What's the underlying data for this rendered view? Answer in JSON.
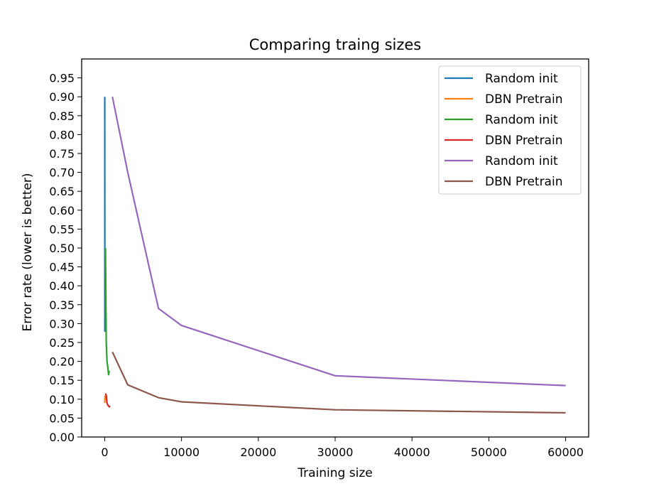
{
  "chart_data": {
    "type": "line",
    "title": "Comparing traing sizes",
    "xlabel": "Training size",
    "ylabel": "Error rate (lower is better)",
    "xlim": [
      -3000,
      63000
    ],
    "ylim": [
      0,
      1.0
    ],
    "xticks": [
      0,
      10000,
      20000,
      30000,
      40000,
      50000,
      60000
    ],
    "xtick_labels": [
      "0",
      "10000",
      "20000",
      "30000",
      "40000",
      "50000",
      "60000"
    ],
    "yticks": [
      0,
      0.05,
      0.1,
      0.15,
      0.2,
      0.25,
      0.3,
      0.35,
      0.4,
      0.45,
      0.5,
      0.55,
      0.6,
      0.65,
      0.7,
      0.75,
      0.8,
      0.85,
      0.9,
      0.95
    ],
    "ytick_labels": [
      "0.00",
      "0.05",
      "0.10",
      "0.15",
      "0.20",
      "0.25",
      "0.30",
      "0.35",
      "0.40",
      "0.45",
      "0.50",
      "0.55",
      "0.60",
      "0.65",
      "0.70",
      "0.75",
      "0.80",
      "0.85",
      "0.90",
      "0.95"
    ],
    "grid": false,
    "legend_position": "top-right",
    "series": [
      {
        "name": "Random init",
        "color": "#1f77b4",
        "x": [
          10,
          20,
          30,
          40,
          50
        ],
        "y": [
          0.9,
          0.28,
          0.285,
          0.29,
          0.295
        ]
      },
      {
        "name": "DBN Pretrain",
        "color": "#ff7f0e",
        "x": [
          10,
          20,
          30,
          40,
          50
        ],
        "y": [
          0.09,
          0.095,
          0.1,
          0.105,
          0.11
        ]
      },
      {
        "name": "Random init",
        "color": "#2ca02c",
        "x": [
          100,
          200,
          300,
          400,
          500,
          600
        ],
        "y": [
          0.5,
          0.25,
          0.2,
          0.185,
          0.165,
          0.175
        ]
      },
      {
        "name": "DBN Pretrain",
        "color": "#d62728",
        "x": [
          100,
          200,
          300,
          400,
          500,
          600,
          700
        ],
        "y": [
          0.115,
          0.11,
          0.09,
          0.085,
          0.082,
          0.08,
          0.082
        ]
      },
      {
        "name": "Random init",
        "color": "#9467bd",
        "x": [
          1000,
          3000,
          7000,
          10000,
          30000,
          60000
        ],
        "y": [
          0.9,
          0.7,
          0.34,
          0.295,
          0.162,
          0.136
        ]
      },
      {
        "name": "DBN Pretrain",
        "color": "#8c564b",
        "x": [
          1000,
          3000,
          7000,
          10000,
          30000,
          60000
        ],
        "y": [
          0.225,
          0.138,
          0.104,
          0.093,
          0.072,
          0.064
        ]
      }
    ]
  }
}
